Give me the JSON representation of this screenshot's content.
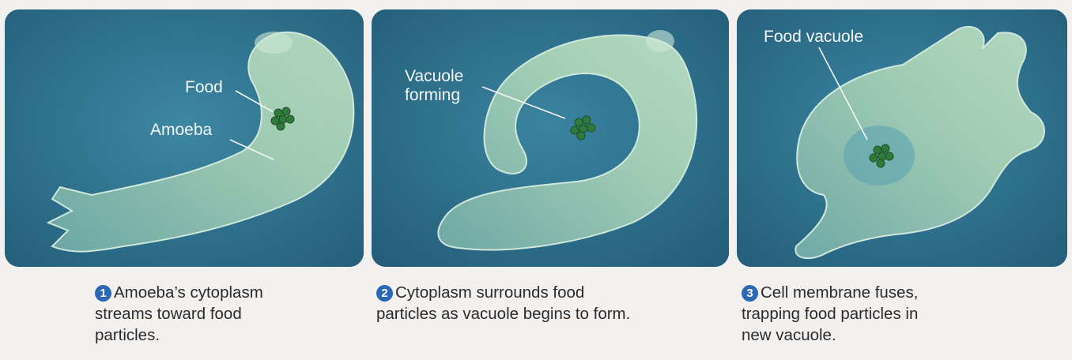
{
  "colors": {
    "background": "#f3f1f0",
    "water": "#2d6f8c",
    "cytoplasm": "#9cc9b4",
    "food": "#2f7a3a",
    "step_badge": "#2a68b5"
  },
  "panels": [
    {
      "labels": {
        "food": "Food",
        "organism": "Amoeba"
      },
      "step": "1",
      "caption": [
        "Amoeba’s cytoplasm",
        "streams toward food",
        "particles."
      ]
    },
    {
      "labels": {
        "vacuole_forming_1": "Vacuole",
        "vacuole_forming_2": "forming"
      },
      "step": "2",
      "caption": [
        "Cytoplasm surrounds food",
        "particles as vacuole begins to form."
      ]
    },
    {
      "labels": {
        "food_vacuole": "Food vacuole"
      },
      "step": "3",
      "caption": [
        "Cell membrane fuses,",
        "trapping food particles in",
        "new vacuole."
      ]
    }
  ]
}
